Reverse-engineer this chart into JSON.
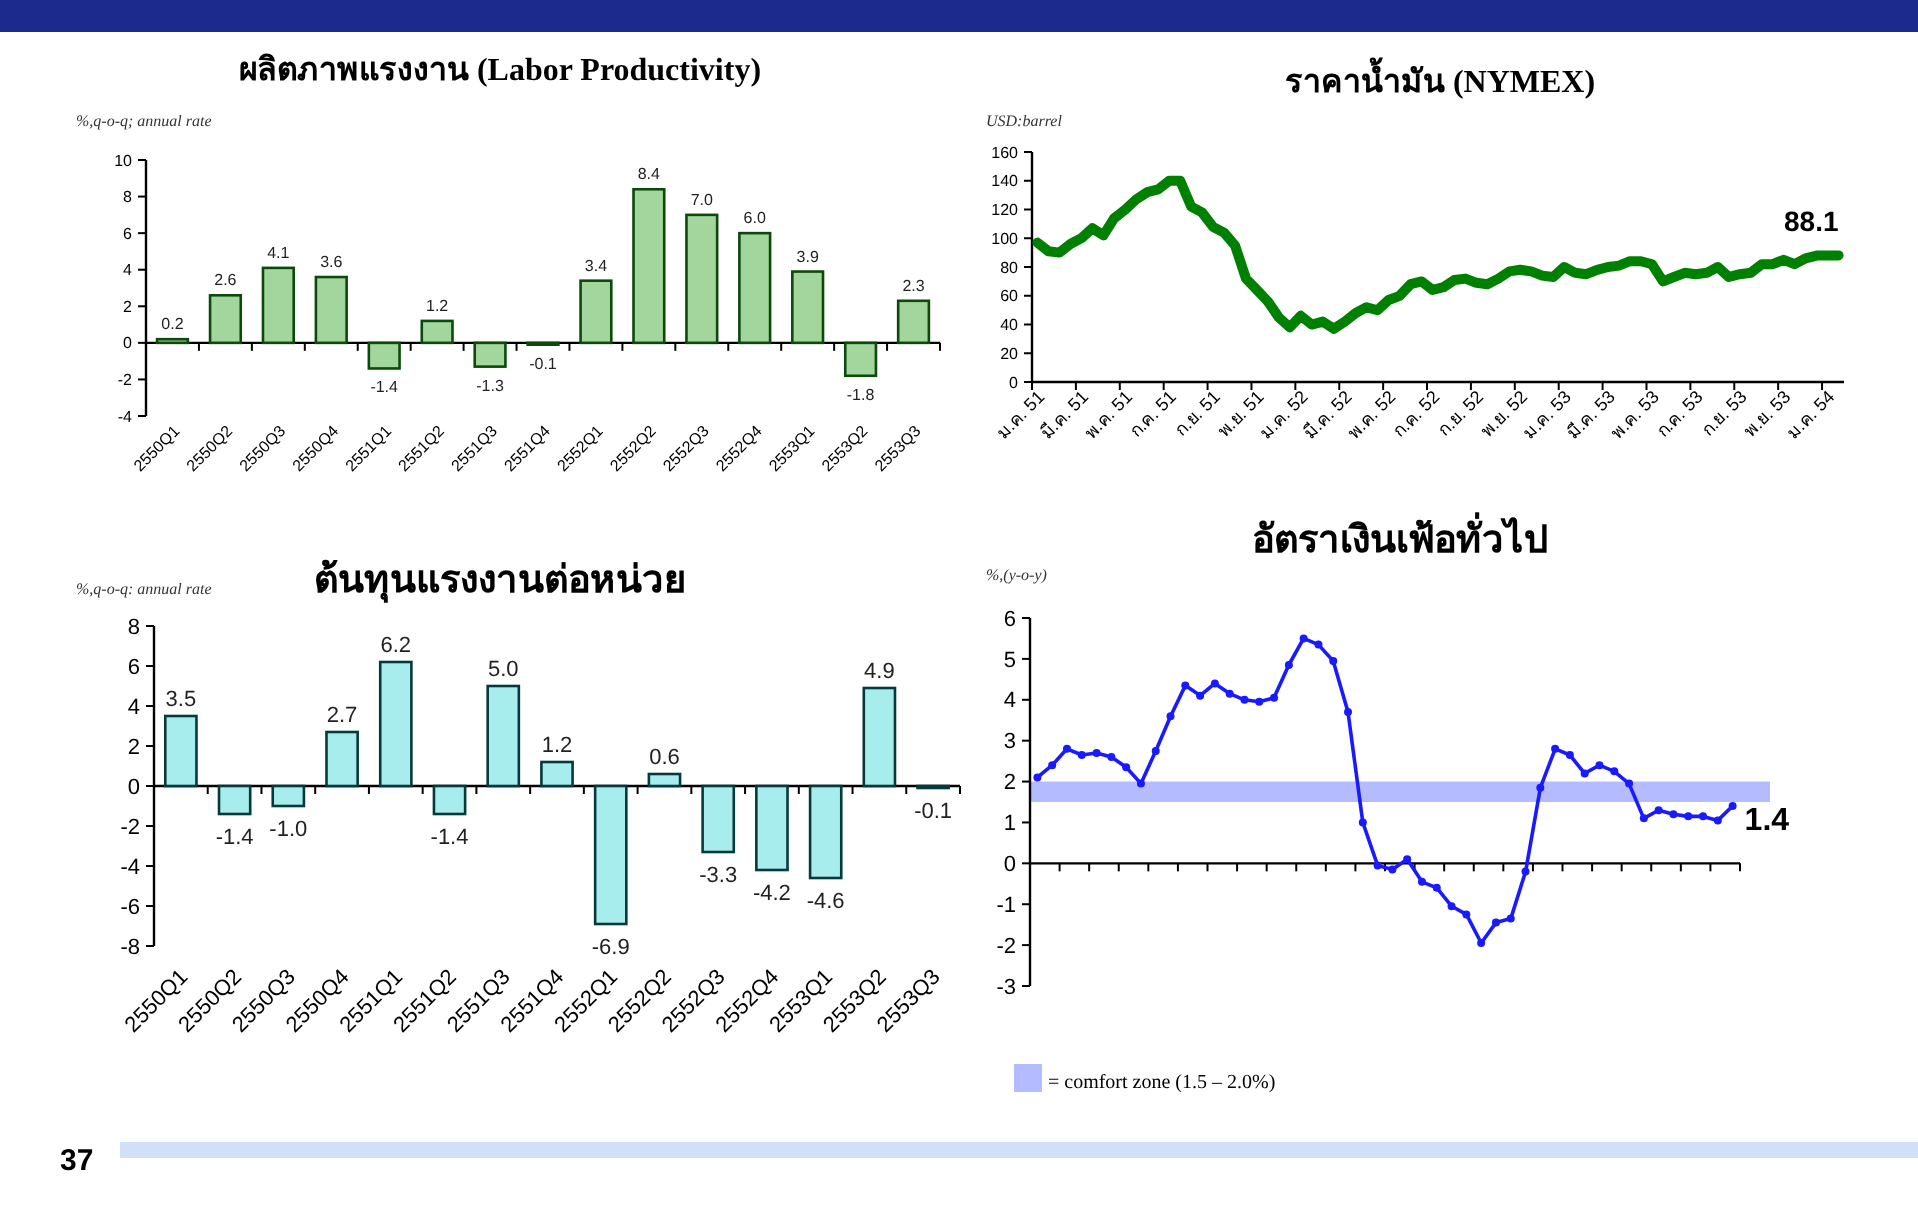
{
  "chart_data": [
    {
      "type": "bar",
      "title": "ผลิตภาพแรงงาน (Labor Productivity)",
      "ylabel": "%,q-o-q; annual rate",
      "color": "#a3d69c",
      "categories": [
        "2550Q1",
        "2550Q2",
        "2550Q3",
        "2550Q4",
        "2551Q1",
        "2551Q2",
        "2551Q3",
        "2551Q4",
        "2552Q1",
        "2552Q2",
        "2552Q3",
        "2552Q4",
        "2553Q1",
        "2553Q2",
        "2553Q3"
      ],
      "values": [
        0.2,
        2.6,
        4.1,
        3.6,
        -1.4,
        1.2,
        -1.3,
        -0.1,
        3.4,
        8.4,
        7.0,
        6.0,
        3.9,
        -1.8,
        2.3
      ],
      "value_labels": [
        "0.2",
        "2.6",
        "4.1",
        "3.6",
        "-1.4",
        "1.2",
        "-1.3",
        "-0.1",
        "3.4",
        "8.4",
        "7.0",
        "6.0",
        "3.9",
        "-1.8",
        "2.3"
      ],
      "ylim": [
        -4,
        10
      ],
      "yticks": [
        -4,
        -2,
        0,
        2,
        4,
        6,
        8,
        10
      ],
      "legend": false
    },
    {
      "type": "line",
      "title": "ราคาน้ำมัน (NYMEX)",
      "ylabel": "USD:barrel",
      "color": "#008000",
      "marker": "none",
      "line_style": "solid",
      "categories": [
        "ม.ค. 51",
        null,
        null,
        null,
        "มี.ค. 51",
        null,
        null,
        null,
        "พ.ค. 51",
        null,
        null,
        null,
        "ก.ค. 51",
        null,
        null,
        null,
        "ก.ย. 51",
        null,
        null,
        null,
        "พ.ย. 51",
        null,
        null,
        null,
        "ม.ค. 52",
        null,
        null,
        null,
        "มี.ค. 52",
        null,
        null,
        null,
        "พ.ค. 52",
        null,
        null,
        null,
        "ก.ค. 52",
        null,
        null,
        null,
        "ก.ย. 52",
        null,
        null,
        null,
        "พ.ย. 52",
        null,
        null,
        null,
        "ม.ค. 53",
        null,
        null,
        null,
        "มี.ค. 53",
        null,
        null,
        null,
        "พ.ค. 53",
        null,
        null,
        null,
        "ก.ค. 53",
        null,
        null,
        null,
        "ก.ย. 53",
        null,
        null,
        null,
        "พ.ย. 53",
        null,
        null,
        null,
        "ม.ค. 54",
        null
      ],
      "values": [
        97,
        91,
        90,
        96,
        100,
        107,
        102,
        114,
        120,
        127,
        132,
        134,
        140,
        140,
        122,
        118,
        108,
        104,
        95,
        72,
        64,
        56,
        45,
        38,
        46,
        40,
        42,
        37,
        42,
        48,
        52,
        50,
        57,
        60,
        68,
        70,
        64,
        66,
        71,
        72,
        69,
        68,
        72,
        77,
        78,
        77,
        74,
        73,
        80,
        76,
        75,
        78,
        80,
        81,
        84,
        84,
        82,
        70,
        73,
        76,
        75,
        76,
        80,
        73,
        75,
        76,
        82,
        82,
        85,
        82,
        86,
        88,
        88,
        88.1
      ],
      "ylim": [
        0,
        160
      ],
      "yticks": [
        0,
        20,
        40,
        60,
        80,
        100,
        120,
        140,
        160
      ],
      "legend": false,
      "annotations": [
        {
          "text": "88.1",
          "y": 88.1
        }
      ]
    },
    {
      "type": "bar",
      "title": "ต้นทุนแรงงานต่อหน่วย",
      "ylabel": "%,q-o-q: annual rate",
      "color": "#a8eded",
      "categories": [
        "2550Q1",
        "2550Q2",
        "2550Q3",
        "2550Q4",
        "2551Q1",
        "2551Q2",
        "2551Q3",
        "2551Q4",
        "2552Q1",
        "2552Q2",
        "2552Q3",
        "2552Q4",
        "2553Q1",
        "2553Q2",
        "2553Q3"
      ],
      "values": [
        3.5,
        -1.4,
        -1.0,
        2.7,
        6.2,
        -1.4,
        5.0,
        1.2,
        -6.9,
        0.6,
        -3.3,
        -4.2,
        -4.6,
        4.9,
        -0.1
      ],
      "value_labels": [
        "3.5",
        "-1.4",
        "-1.0",
        "2.7",
        "6.2",
        "-1.4",
        "5.0",
        "1.2",
        "-6.9",
        "0.6",
        "-3.3",
        "-4.2",
        "-4.6",
        "4.9",
        "-0.1"
      ],
      "ylim": [
        -8,
        8
      ],
      "yticks": [
        -8,
        -6,
        -4,
        -2,
        0,
        2,
        4,
        6,
        8
      ],
      "legend": false,
      "annotations": [
        "37"
      ]
    },
    {
      "type": "line",
      "title": "อัตราเงินเฟ้อทั่วไป",
      "ylabel": "%,(y-o-y)",
      "color": "#1a1aff",
      "marker": "circle",
      "line_style": "solid",
      "categories": [
        null,
        null,
        null,
        null,
        null,
        null,
        null,
        null,
        null,
        null,
        null,
        null,
        null,
        null,
        null,
        null,
        null,
        null,
        null,
        null,
        null,
        null,
        null,
        null,
        null,
        null,
        null,
        null,
        null,
        null,
        null,
        null,
        null,
        null,
        null,
        null,
        null,
        null,
        null,
        null,
        null,
        null,
        null,
        null,
        null,
        null,
        null,
        null
      ],
      "values": [
        2.1,
        2.4,
        2.8,
        2.65,
        2.7,
        2.6,
        2.35,
        1.95,
        2.75,
        3.6,
        4.35,
        4.1,
        4.4,
        4.15,
        4.0,
        3.95,
        4.05,
        4.85,
        5.5,
        5.35,
        4.95,
        3.7,
        1.0,
        -0.05,
        -0.15,
        0.1,
        -0.45,
        -0.6,
        -1.05,
        -1.25,
        -1.95,
        -1.45,
        -1.35,
        -0.2,
        1.85,
        2.8,
        2.65,
        2.2,
        2.4,
        2.25,
        1.95,
        1.1,
        1.3,
        1.2,
        1.15,
        1.15,
        1.05,
        1.4
      ],
      "ylim": [
        -3,
        6
      ],
      "yticks": [
        -3,
        -2,
        -1,
        0,
        1,
        2,
        3,
        4,
        5,
        6
      ],
      "legend": "bottom",
      "bands": [
        {
          "axis": "y",
          "from": 1.5,
          "to": 2.0,
          "label": "= comfort zone (1.5 – 2.0%)",
          "color": "#b4bcff"
        }
      ],
      "annotations": [
        {
          "text": "1.4",
          "y": 1.4
        }
      ]
    }
  ]
}
